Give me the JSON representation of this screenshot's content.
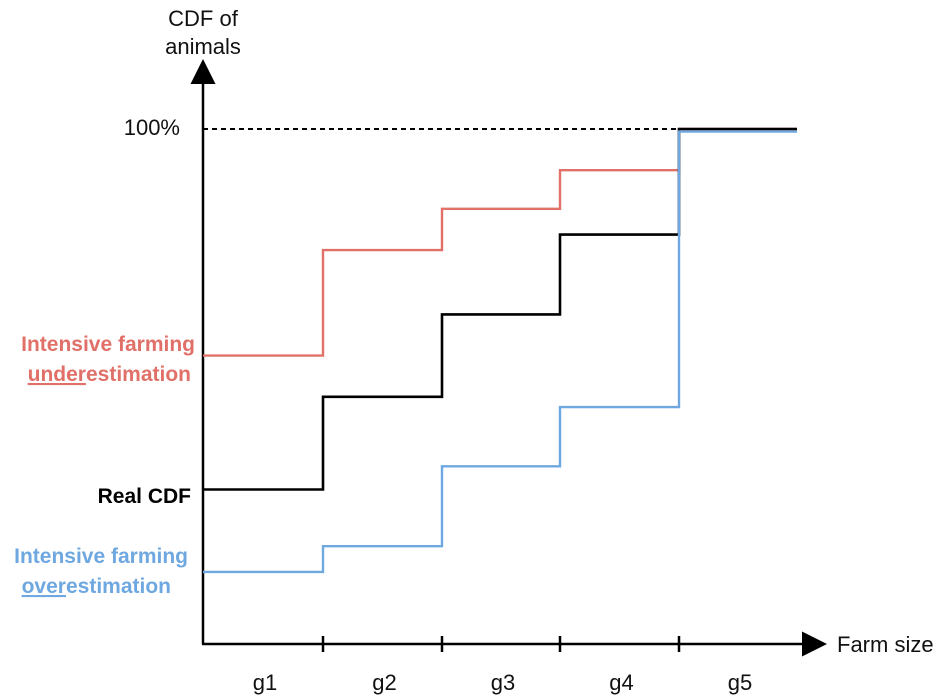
{
  "chart_data": {
    "type": "line",
    "step": "post",
    "ylabel_lines": [
      "CDF of",
      "animals"
    ],
    "xlabel": "Farm size",
    "categories": [
      "g1",
      "g2",
      "g3",
      "g4",
      "g5"
    ],
    "y_tick_label": "100%",
    "y_tick_value": 1.0,
    "ylim": [
      0,
      1.0
    ],
    "grid": false,
    "series": [
      {
        "name": "Intensive farming underestimation",
        "name_lines": [
          {
            "underlined": "under",
            "rest": "estimation",
            "prefix": "Intensive farming"
          }
        ],
        "color": "#e07068",
        "values": [
          0.56,
          0.765,
          0.845,
          0.92,
          1.0
        ]
      },
      {
        "name": "Real CDF",
        "color": "#000000",
        "values": [
          0.3,
          0.48,
          0.64,
          0.795,
          1.0
        ]
      },
      {
        "name": "Intensive farming overestimation",
        "color": "#6fa8e0",
        "values": [
          0.14,
          0.19,
          0.345,
          0.46,
          0.995
        ]
      }
    ],
    "labels": {
      "under_line1": "Intensive farming",
      "under_u": "under",
      "under_rest": "estimation",
      "real": "Real CDF",
      "over_line1": "Intensive farming",
      "over_u": "over",
      "over_rest": "estimation"
    }
  }
}
